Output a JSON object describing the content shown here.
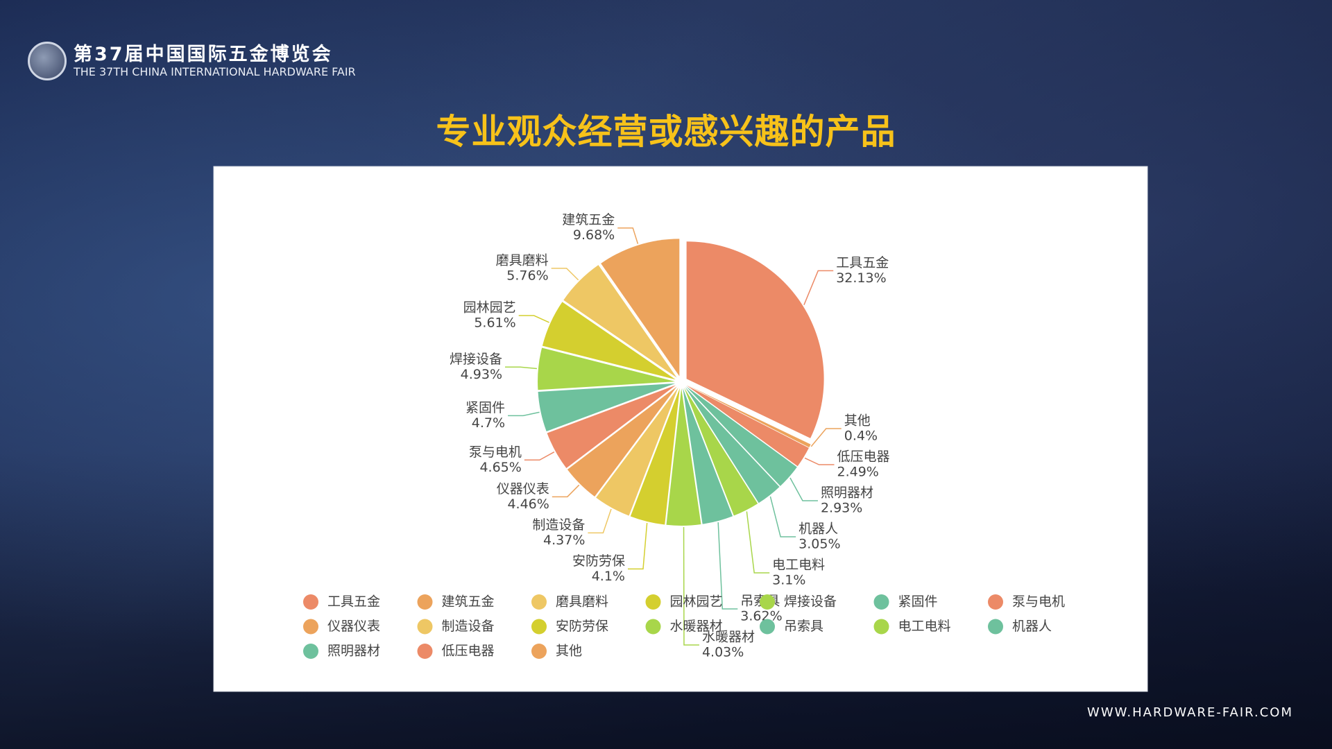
{
  "header": {
    "title": "第37届中国国际五金博览会",
    "subtitle": "THE 37TH CHINA INTERNATIONAL HARDWARE FAIR"
  },
  "footer": {
    "url": "WWW.HARDWARE-FAIR.COM"
  },
  "chart_data": {
    "type": "pie",
    "title": "专业观众经营或感兴趣的产品",
    "categories": [
      "工具五金",
      "建筑五金",
      "磨具磨料",
      "园林园艺",
      "焊接设备",
      "紧固件",
      "泵与电机",
      "仪器仪表",
      "制造设备",
      "安防劳保",
      "水暖器材",
      "吊索具",
      "电工电料",
      "机器人",
      "照明器材",
      "低压电器",
      "其他"
    ],
    "values": [
      32.13,
      9.68,
      5.76,
      5.61,
      4.93,
      4.7,
      4.65,
      4.46,
      4.37,
      4.1,
      4.03,
      3.62,
      3.1,
      3.05,
      2.93,
      2.49,
      0.4
    ],
    "value_labels": [
      "32.13%",
      "9.68%",
      "5.76%",
      "5.61%",
      "4.93%",
      "4.7%",
      "4.65%",
      "4.46%",
      "4.37%",
      "4.1%",
      "4.03%",
      "3.62%",
      "3.1%",
      "3.05%",
      "2.93%",
      "2.49%",
      "0.4%"
    ],
    "colors": [
      "#ec8a67",
      "#eca35c",
      "#eec764",
      "#d4cf2f",
      "#a8d64a",
      "#6ec19d",
      "#ec8a67",
      "#eca35c",
      "#eec764",
      "#d4cf2f",
      "#a8d64a",
      "#6ec19d",
      "#a8d64a",
      "#6ec19d",
      "#6ec19d",
      "#ec8a67",
      "#eca35c"
    ]
  }
}
